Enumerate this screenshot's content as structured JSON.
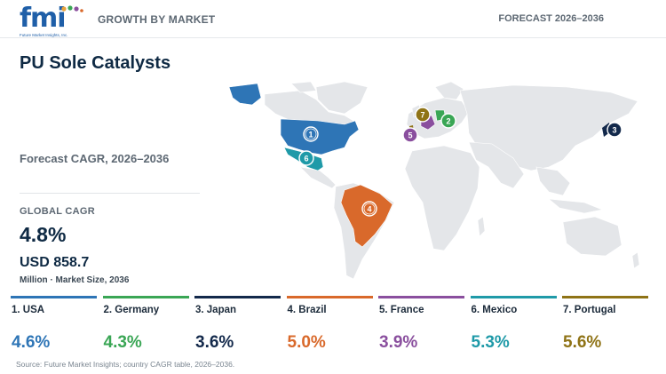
{
  "header": {
    "logo_text": "fmi",
    "logo_sub": "Future Market Insights, Inc.",
    "section": "GROWTH BY MARKET",
    "forecast": "FORECAST 2026–2036"
  },
  "title": "PU Sole Catalysts",
  "cagr_heading": "Forecast CAGR, 2026–2036",
  "global": {
    "label": "GLOBAL CAGR",
    "value": "4.8%",
    "size": "USD 858.7",
    "size_caption": "Million · Market Size, 2036"
  },
  "countries": [
    {
      "rank": "1",
      "label": "1. USA",
      "cagr": "4.6%",
      "color": "#2e75b6"
    },
    {
      "rank": "2",
      "label": "2. Germany",
      "cagr": "4.3%",
      "color": "#3aa655"
    },
    {
      "rank": "3",
      "label": "3. Japan",
      "cagr": "3.6%",
      "color": "#13294b"
    },
    {
      "rank": "4",
      "label": "4. Brazil",
      "cagr": "5.0%",
      "color": "#d9692b"
    },
    {
      "rank": "5",
      "label": "5. France",
      "cagr": "3.9%",
      "color": "#8a4f9e"
    },
    {
      "rank": "6",
      "label": "6. Mexico",
      "cagr": "5.3%",
      "color": "#1f9aa8"
    },
    {
      "rank": "7",
      "label": "7. Portugal",
      "cagr": "5.6%",
      "color": "#8f7316"
    }
  ],
  "source": "Source: Future Market Insights; country CAGR table, 2026–2036."
}
